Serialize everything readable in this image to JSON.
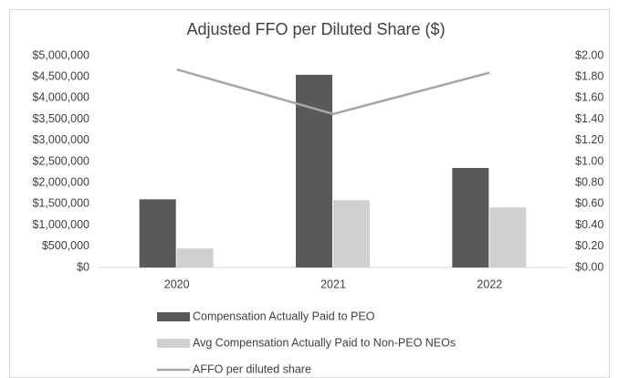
{
  "chart_data": {
    "type": "bar",
    "title": "Adjusted FFO per Diluted Share ($)",
    "categories": [
      "2020",
      "2021",
      "2022"
    ],
    "series": [
      {
        "name": "Compensation Actually Paid to PEO",
        "color": "#595959",
        "type": "bar",
        "values": [
          1610000,
          4550000,
          2350000
        ]
      },
      {
        "name": "Avg Compensation Actually Paid to Non-PEO NEOs",
        "color": "#d0d0d0",
        "type": "bar",
        "values": [
          450000,
          1590000,
          1420000
        ]
      },
      {
        "name": "AFFO per diluted share",
        "color": "#a6a6a6",
        "type": "line",
        "axis": "y2",
        "values": [
          1.87,
          1.45,
          1.84
        ]
      }
    ],
    "ylim": [
      0,
      5000000
    ],
    "yticks": [
      {
        "value": 0,
        "label": "$0"
      },
      {
        "value": 500000,
        "label": "$500,000"
      },
      {
        "value": 1000000,
        "label": "$1,000,000"
      },
      {
        "value": 1500000,
        "label": "$1,500,000"
      },
      {
        "value": 2000000,
        "label": "$2,000,000"
      },
      {
        "value": 2500000,
        "label": "$2,500,000"
      },
      {
        "value": 3000000,
        "label": "$3,000,000"
      },
      {
        "value": 3500000,
        "label": "$3,500,000"
      },
      {
        "value": 4000000,
        "label": "$4,000,000"
      },
      {
        "value": 4500000,
        "label": "$4,500,000"
      },
      {
        "value": 5000000,
        "label": "$5,000,000"
      }
    ],
    "y2lim": [
      0,
      2
    ],
    "y2ticks": [
      {
        "value": 0,
        "label": "$0.00"
      },
      {
        "value": 0.2,
        "label": "$0.20"
      },
      {
        "value": 0.4,
        "label": "$0.40"
      },
      {
        "value": 0.6,
        "label": "$0.60"
      },
      {
        "value": 0.8,
        "label": "$0.80"
      },
      {
        "value": 1,
        "label": "$1.00"
      },
      {
        "value": 1.2,
        "label": "$1.20"
      },
      {
        "value": 1.4,
        "label": "$1.40"
      },
      {
        "value": 1.6,
        "label": "$1.60"
      },
      {
        "value": 1.8,
        "label": "$1.80"
      },
      {
        "value": 2,
        "label": "$2.00"
      }
    ]
  }
}
